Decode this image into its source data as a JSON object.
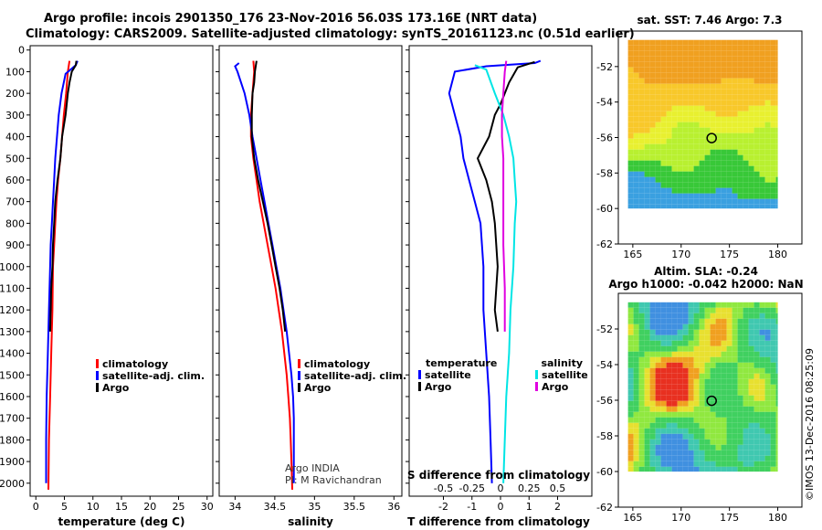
{
  "title_line1": "Argo profile: incois 2901350_176 23-Nov-2016 56.03S 173.16E (NRT data)",
  "title_line2": "Climatology: CARS2009. Satellite-adjusted climatology: synTS_20161123.nc (0.51d earlier)",
  "colors": {
    "climatology": "#ff0000",
    "satellite": "#0000ff",
    "argo": "#000000",
    "sat_salinity": "#00e5e5",
    "argo_salinity": "#e000e0"
  },
  "footer_credit": "©IMOS 13-Dec-2016 08:25:09",
  "chart_data": [
    {
      "type": "line",
      "id": "temperature",
      "xlabel": "temperature (deg C)",
      "xlim": [
        -1,
        31
      ],
      "ylim": [
        2060,
        -20
      ],
      "x_ticks": [
        "0",
        "5",
        "10",
        "15",
        "20",
        "25",
        "30"
      ],
      "y_ticks": [
        "0",
        "100",
        "200",
        "300",
        "400",
        "500",
        "600",
        "700",
        "800",
        "900",
        "1000",
        "1100",
        "1200",
        "1300",
        "1400",
        "1500",
        "1600",
        "1700",
        "1800",
        "1900",
        "2000"
      ],
      "legend": [
        "climatology",
        "satellite-adj. clim.",
        "Argo"
      ],
      "series": [
        {
          "name": "climatology",
          "color_key": "climatology",
          "points": [
            [
              5.9,
              50
            ],
            [
              5.6,
              100
            ],
            [
              5.3,
              200
            ],
            [
              4.9,
              300
            ],
            [
              4.6,
              400
            ],
            [
              4.3,
              500
            ],
            [
              3.9,
              600
            ],
            [
              3.6,
              700
            ],
            [
              3.4,
              800
            ],
            [
              3.2,
              900
            ],
            [
              3.0,
              1000
            ],
            [
              2.9,
              1200
            ],
            [
              2.7,
              1400
            ],
            [
              2.5,
              1600
            ],
            [
              2.3,
              1800
            ],
            [
              2.2,
              2030
            ]
          ]
        },
        {
          "name": "satellite-adj. clim.",
          "color_key": "satellite",
          "points": [
            [
              7.3,
              50
            ],
            [
              7.0,
              70
            ],
            [
              5.2,
              110
            ],
            [
              4.5,
              200
            ],
            [
              4.0,
              300
            ],
            [
              3.7,
              400
            ],
            [
              3.4,
              500
            ],
            [
              3.2,
              600
            ],
            [
              3.0,
              700
            ],
            [
              2.8,
              800
            ],
            [
              2.6,
              900
            ],
            [
              2.5,
              1000
            ],
            [
              2.3,
              1200
            ],
            [
              2.1,
              1400
            ],
            [
              1.9,
              1600
            ],
            [
              1.8,
              1800
            ],
            [
              1.8,
              2000
            ]
          ]
        },
        {
          "name": "Argo",
          "color_key": "argo",
          "points": [
            [
              7.1,
              50
            ],
            [
              7.0,
              70
            ],
            [
              6.3,
              100
            ],
            [
              5.9,
              150
            ],
            [
              5.6,
              200
            ],
            [
              5.2,
              300
            ],
            [
              4.6,
              400
            ],
            [
              4.3,
              500
            ],
            [
              3.8,
              600
            ],
            [
              3.4,
              700
            ],
            [
              3.2,
              800
            ],
            [
              3.0,
              900
            ],
            [
              2.9,
              1000
            ],
            [
              2.7,
              1100
            ],
            [
              2.6,
              1200
            ],
            [
              2.5,
              1300
            ]
          ]
        }
      ]
    },
    {
      "type": "line",
      "id": "salinity",
      "xlabel": "salinity",
      "xlim": [
        33.8,
        36.1
      ],
      "ylim": [
        2060,
        -20
      ],
      "x_ticks": [
        "34",
        "34.5",
        "35",
        "35.5",
        "36"
      ],
      "legend": [
        "climatology",
        "satellite-adj. clim.",
        "Argo"
      ],
      "series": [
        {
          "name": "climatology",
          "color_key": "climatology",
          "points": [
            [
              34.23,
              50
            ],
            [
              34.24,
              100
            ],
            [
              34.22,
              200
            ],
            [
              34.2,
              300
            ],
            [
              34.2,
              400
            ],
            [
              34.23,
              500
            ],
            [
              34.27,
              600
            ],
            [
              34.31,
              700
            ],
            [
              34.36,
              800
            ],
            [
              34.41,
              900
            ],
            [
              34.46,
              1000
            ],
            [
              34.51,
              1100
            ],
            [
              34.55,
              1200
            ],
            [
              34.59,
              1300
            ],
            [
              34.62,
              1400
            ],
            [
              34.65,
              1500
            ],
            [
              34.67,
              1600
            ],
            [
              34.69,
              1700
            ],
            [
              34.7,
              1800
            ],
            [
              34.71,
              1900
            ],
            [
              34.72,
              2030
            ]
          ]
        },
        {
          "name": "satellite-adj. clim.",
          "color_key": "satellite",
          "points": [
            [
              34.05,
              60
            ],
            [
              34.0,
              75
            ],
            [
              34.03,
              100
            ],
            [
              34.12,
              200
            ],
            [
              34.18,
              300
            ],
            [
              34.22,
              400
            ],
            [
              34.27,
              500
            ],
            [
              34.32,
              600
            ],
            [
              34.37,
              700
            ],
            [
              34.42,
              800
            ],
            [
              34.47,
              900
            ],
            [
              34.52,
              1000
            ],
            [
              34.57,
              1100
            ],
            [
              34.61,
              1200
            ],
            [
              34.65,
              1300
            ],
            [
              34.68,
              1400
            ],
            [
              34.71,
              1500
            ],
            [
              34.73,
              1600
            ],
            [
              34.74,
              1700
            ],
            [
              34.74,
              1800
            ],
            [
              34.74,
              2000
            ]
          ]
        },
        {
          "name": "Argo",
          "color_key": "argo",
          "points": [
            [
              34.27,
              50
            ],
            [
              34.25,
              100
            ],
            [
              34.24,
              150
            ],
            [
              34.22,
              200
            ],
            [
              34.21,
              300
            ],
            [
              34.21,
              400
            ],
            [
              34.24,
              500
            ],
            [
              34.29,
              600
            ],
            [
              34.35,
              700
            ],
            [
              34.41,
              800
            ],
            [
              34.46,
              900
            ],
            [
              34.51,
              1000
            ],
            [
              34.56,
              1100
            ],
            [
              34.6,
              1200
            ],
            [
              34.63,
              1300
            ]
          ]
        }
      ],
      "notes": [
        "Argo INDIA",
        "PI: M Ravichandran"
      ]
    },
    {
      "type": "line",
      "id": "difference",
      "xlabel": "T difference from climatology",
      "xlabel_top": "S difference from climatology",
      "xlim": [
        -3.2,
        3.2
      ],
      "ylim": [
        2060,
        -20
      ],
      "x_ticks": [
        "-2",
        "-1",
        "0",
        "1",
        "2"
      ],
      "s_ticks": [
        "-0.5",
        "-0.25",
        "0",
        "0.25",
        "0.5"
      ],
      "legend_temperature": {
        "title": "temperature",
        "entries": [
          "satellite",
          "Argo"
        ]
      },
      "legend_salinity": {
        "title": "salinity",
        "entries": [
          "satellite",
          "Argo"
        ]
      },
      "series": [
        {
          "name": "temperature satellite",
          "color_key": "satellite",
          "points": [
            [
              1.4,
              50
            ],
            [
              1.2,
              60
            ],
            [
              -0.5,
              75
            ],
            [
              -1.6,
              100
            ],
            [
              -1.8,
              200
            ],
            [
              -1.6,
              300
            ],
            [
              -1.4,
              400
            ],
            [
              -1.3,
              500
            ],
            [
              -1.1,
              600
            ],
            [
              -0.9,
              700
            ],
            [
              -0.7,
              800
            ],
            [
              -0.6,
              1000
            ],
            [
              -0.6,
              1200
            ],
            [
              -0.5,
              1400
            ],
            [
              -0.4,
              1600
            ],
            [
              -0.35,
              1800
            ],
            [
              -0.3,
              2000
            ]
          ]
        },
        {
          "name": "temperature Argo",
          "color_key": "argo",
          "points": [
            [
              1.2,
              55
            ],
            [
              0.6,
              80
            ],
            [
              0.3,
              150
            ],
            [
              0.0,
              250
            ],
            [
              -0.2,
              300
            ],
            [
              -0.4,
              400
            ],
            [
              -0.8,
              500
            ],
            [
              -0.5,
              600
            ],
            [
              -0.3,
              700
            ],
            [
              -0.2,
              800
            ],
            [
              -0.1,
              1000
            ],
            [
              -0.2,
              1200
            ],
            [
              -0.1,
              1300
            ]
          ]
        },
        {
          "name": "salinity satellite",
          "color_key": "sat_salinity",
          "points": [
            [
              -0.9,
              70
            ],
            [
              -0.5,
              90
            ],
            [
              -0.2,
              200
            ],
            [
              0.1,
              300
            ],
            [
              0.3,
              400
            ],
            [
              0.45,
              500
            ],
            [
              0.5,
              600
            ],
            [
              0.55,
              700
            ],
            [
              0.5,
              800
            ],
            [
              0.45,
              1000
            ],
            [
              0.35,
              1200
            ],
            [
              0.3,
              1400
            ],
            [
              0.2,
              1600
            ],
            [
              0.15,
              1800
            ],
            [
              0.1,
              2000
            ]
          ]
        },
        {
          "name": "salinity Argo",
          "color_key": "argo_salinity",
          "points": [
            [
              0.2,
              50
            ],
            [
              0.15,
              100
            ],
            [
              0.1,
              200
            ],
            [
              0.05,
              300
            ],
            [
              0.05,
              400
            ],
            [
              0.1,
              500
            ],
            [
              0.1,
              700
            ],
            [
              0.1,
              900
            ],
            [
              0.15,
              1100
            ],
            [
              0.15,
              1300
            ]
          ]
        }
      ]
    },
    {
      "type": "heatmap",
      "id": "sst-map",
      "title": "sat. SST: 7.46 Argo: 7.3",
      "xlim": [
        163.5,
        182.5
      ],
      "ylim": [
        -62,
        -50
      ],
      "x_ticks": [
        "165",
        "170",
        "175",
        "180"
      ],
      "y_ticks": [
        "-52",
        "-54",
        "-56",
        "-58",
        "-60",
        "-62"
      ],
      "argo_position": [
        173.16,
        -56.03
      ]
    },
    {
      "type": "heatmap",
      "id": "sla-map",
      "title": "Altim. SLA: -0.24",
      "subtitle": "Argo h1000: -0.042 h2000: NaN",
      "xlim": [
        163.5,
        182.5
      ],
      "ylim": [
        -62,
        -50
      ],
      "x_ticks": [
        "165",
        "170",
        "175",
        "180"
      ],
      "y_ticks": [
        "-52",
        "-54",
        "-56",
        "-58",
        "-60",
        "-62"
      ],
      "argo_position": [
        173.16,
        -56.03
      ]
    }
  ]
}
